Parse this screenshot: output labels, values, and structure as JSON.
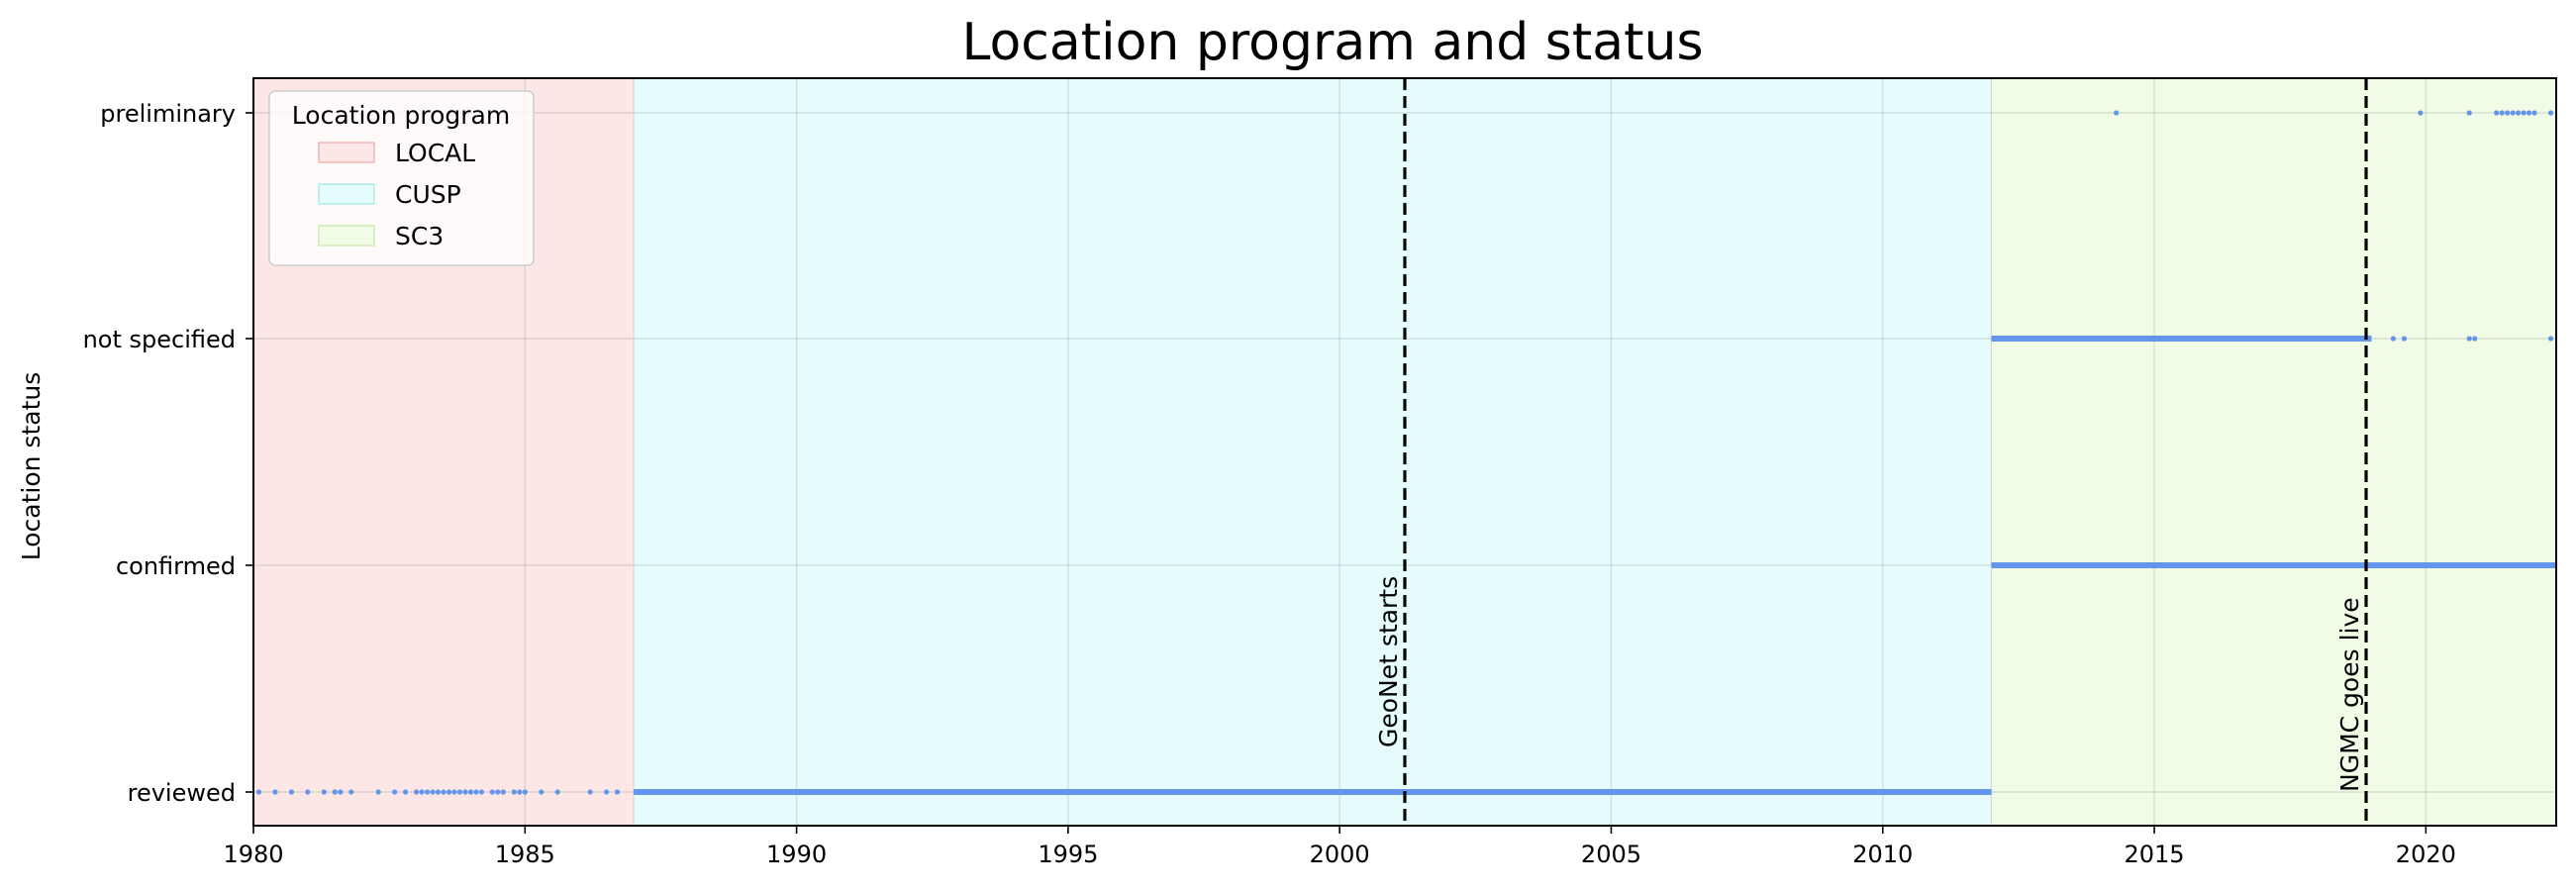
{
  "chart_data": {
    "type": "scatter",
    "title": "Location program and status",
    "xlabel": "",
    "ylabel": "Location status",
    "xlim": [
      1980,
      2022.4
    ],
    "x_ticks": [
      1980,
      1985,
      1990,
      1995,
      2000,
      2005,
      2010,
      2015,
      2020
    ],
    "categories": [
      "reviewed",
      "confirmed",
      "not specified",
      "preliminary"
    ],
    "grid": true,
    "legend": {
      "title": "Location program",
      "placement": "top-left",
      "entries": [
        {
          "label": "LOCAL",
          "color": "#fce6e6",
          "border": "#f4a6a6"
        },
        {
          "label": "CUSP",
          "color": "#e6fcfc",
          "border": "#9ee6e6"
        },
        {
          "label": "SC3",
          "color": "#f0fce6",
          "border": "#c6e9a6"
        }
      ]
    },
    "program_periods": [
      {
        "label": "LOCAL",
        "start": 1980,
        "end": 1987.0
      },
      {
        "label": "CUSP",
        "start": 1987.0,
        "end": 2012.0
      },
      {
        "label": "SC3",
        "start": 2012.0,
        "end": 2022.4
      }
    ],
    "annotations": [
      {
        "label": "GeoNet starts",
        "x": 2001.2
      },
      {
        "label": "NGMC goes live",
        "x": 2018.9
      }
    ],
    "marker_color": "#6495ed",
    "series": [
      {
        "category": "reviewed",
        "sparse_points": [
          1980.1,
          1980.4,
          1980.7,
          1981.0,
          1981.3,
          1981.5,
          1981.6,
          1981.8,
          1982.3,
          1982.6,
          1982.8,
          1983.0,
          1983.1,
          1983.2,
          1983.3,
          1983.4,
          1983.5,
          1983.6,
          1983.7,
          1983.8,
          1983.9,
          1984.0,
          1984.1,
          1984.2,
          1984.4,
          1984.5,
          1984.6,
          1984.8,
          1984.9,
          1985.0,
          1985.3,
          1985.6,
          1986.2,
          1986.5,
          1986.7
        ],
        "dense_ranges": [
          [
            1987.0,
            2012.0
          ]
        ]
      },
      {
        "category": "confirmed",
        "sparse_points": [],
        "dense_ranges": [
          [
            2012.0,
            2022.4
          ]
        ]
      },
      {
        "category": "not specified",
        "sparse_points": [
          2019.4,
          2019.6,
          2020.8,
          2020.9,
          2022.3
        ],
        "dense_ranges": [
          [
            2012.0,
            2019.0
          ]
        ]
      },
      {
        "category": "preliminary",
        "sparse_points": [
          2014.3,
          2019.9,
          2020.8,
          2021.3,
          2021.4,
          2021.5,
          2021.6,
          2021.7,
          2021.8,
          2021.9,
          2022.0,
          2022.3
        ],
        "dense_ranges": []
      }
    ]
  }
}
